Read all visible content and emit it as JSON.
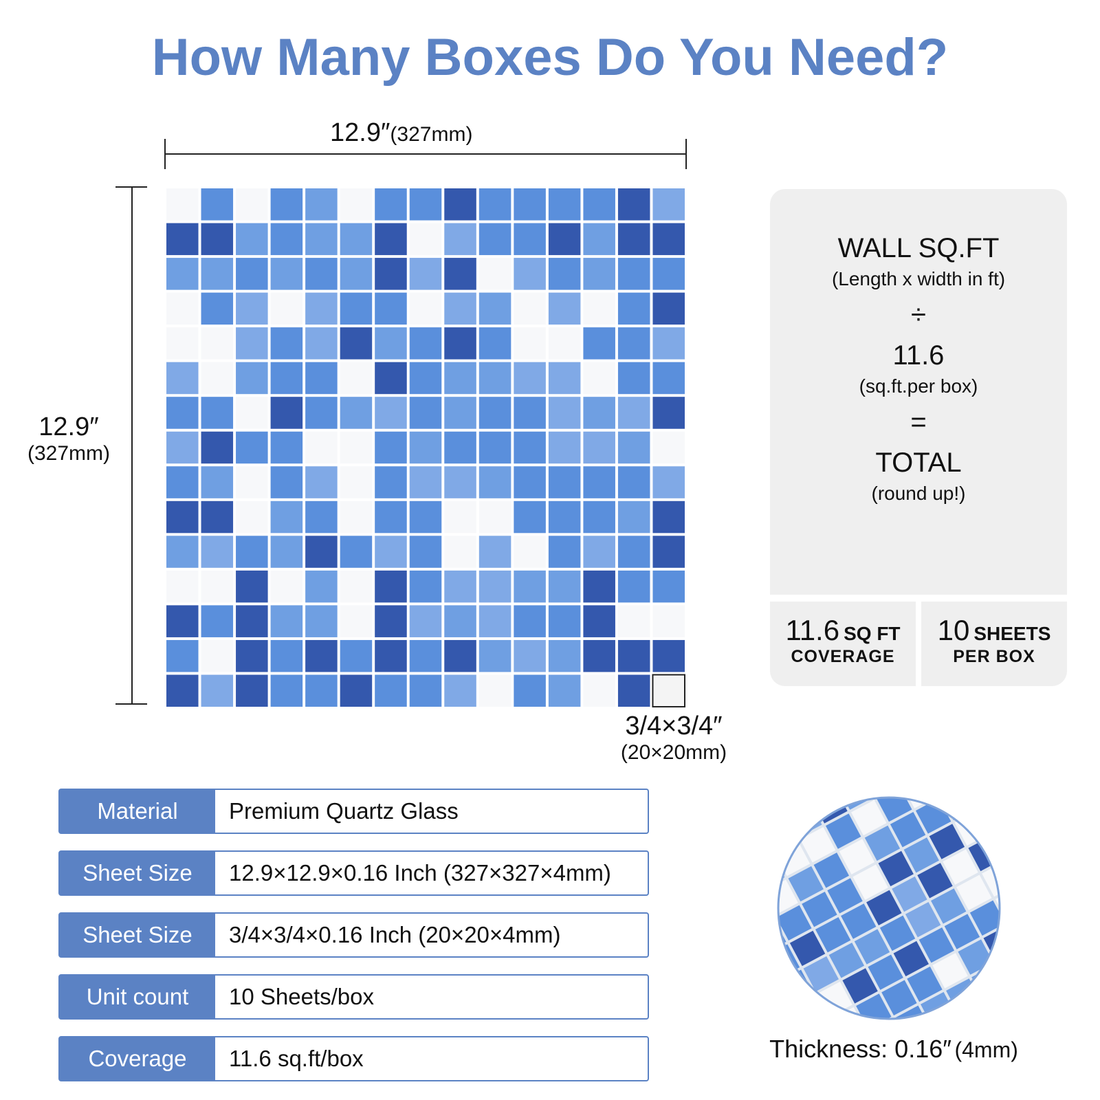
{
  "header": {
    "title": "How Many Boxes Do You Need?"
  },
  "dimensions": {
    "width": {
      "inches": "12.9″",
      "mm": "(327mm)"
    },
    "height": {
      "inches": "12.9″",
      "mm": "(327mm)"
    },
    "tile": {
      "inches": "3/4×3/4″",
      "mm": "(20×20mm)"
    }
  },
  "formula": {
    "lines": [
      {
        "text": "WALL SQ.FT",
        "note": "(Length x width in ft)"
      },
      {
        "text": "÷"
      },
      {
        "text": "11.6",
        "note": "(sq.ft.per box)"
      },
      {
        "text": "="
      },
      {
        "text": "TOTAL",
        "note": "(round up!)"
      }
    ]
  },
  "stats": [
    {
      "number": "11.6",
      "unit": "SQ FT",
      "caption": "COVERAGE"
    },
    {
      "number": "10",
      "unit": "SHEETS",
      "caption": "PER BOX"
    }
  ],
  "specs": {
    "rows": [
      [
        "Material",
        "Premium Quartz Glass"
      ],
      [
        "Sheet Size",
        "12.9×12.9×0.16 Inch (327×327×4mm)"
      ],
      [
        "Sheet Size",
        "3/4×3/4×0.16 Inch (20×20×4mm)"
      ],
      [
        "Unit count",
        "10 Sheets/box"
      ],
      [
        "Coverage",
        "11.6 sq.ft/box"
      ]
    ]
  },
  "thickness": {
    "label": "Thickness: 0.16″",
    "mm": "(4mm)"
  }
}
